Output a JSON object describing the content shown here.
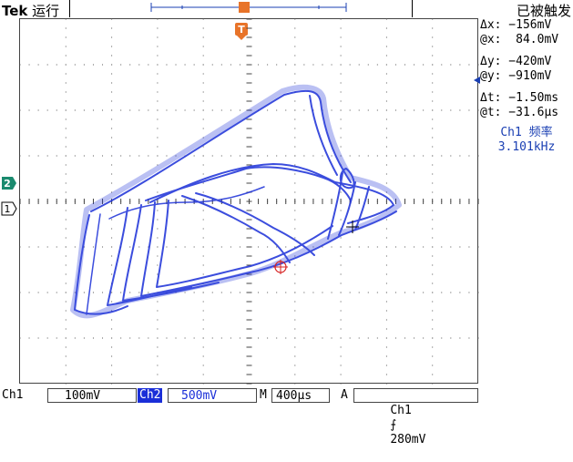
{
  "topbar": {
    "brand": "Tek",
    "run_state": "运行",
    "trigger_status": "已被触发",
    "trigger_marker": "T"
  },
  "readouts": {
    "dx": "Δx: −156mV",
    "ax": "@x:  84.0mV",
    "dy": "Δy: −420mV",
    "ay": "@y: −910mV",
    "dt": "Δt: −1.50ms",
    "at": "@t: −31.6μs",
    "freq_label": "Ch1 频率",
    "freq_value": "3.101kHz"
  },
  "markers": {
    "ch2": "2",
    "ch1": "1"
  },
  "bottombar": {
    "ch1_label": "Ch1",
    "ch1_scale": "100mV",
    "ch2_label": "Ch2",
    "ch2_scale": "500mV",
    "timebase_label": "M",
    "timebase": "400μs",
    "trigger_mode": "A",
    "trigger_source": "Ch1",
    "trigger_slope": "⨍",
    "trigger_level": "280mV"
  },
  "colors": {
    "trace": "#1a2ed8",
    "cursor": "#d62020",
    "trigger": "#e8742a",
    "grid": "#555555"
  }
}
